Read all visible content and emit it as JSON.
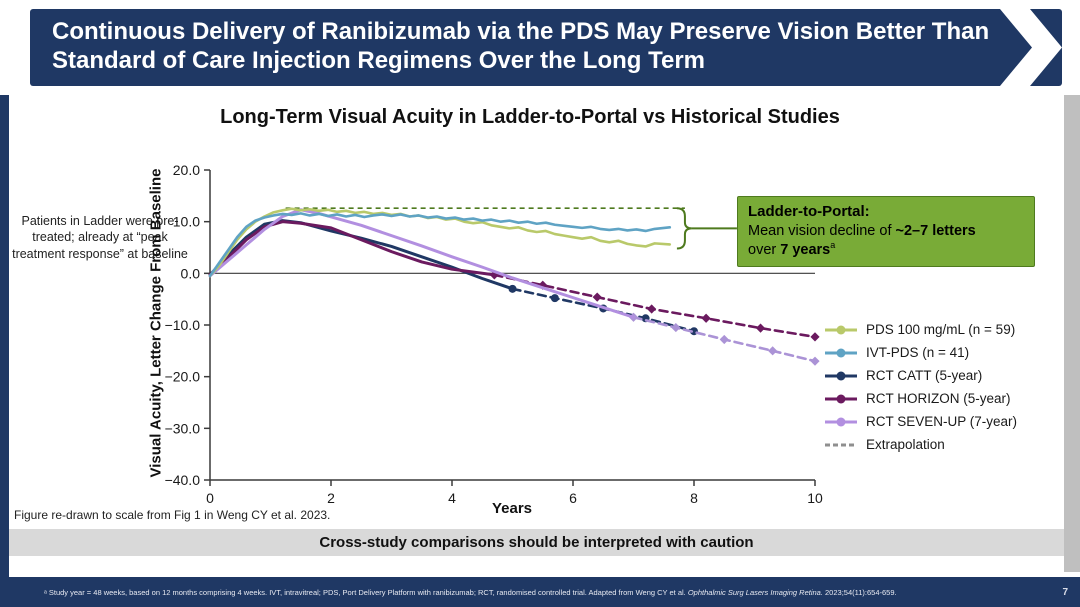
{
  "header": {
    "title": "Continuous Delivery of Ranibizumab via the PDS May Preserve Vision Better Than Standard of Care Injection Regimens Over the Long Term"
  },
  "slide": {
    "left_note": "Patients in Ladder were pre-treated; already at “peak treatment response” at baseline",
    "figure_note": "Figure re-drawn to scale from Fig 1 in Weng CY et al. 2023.",
    "caution_banner": "Cross-study comparisons should be interpreted with caution"
  },
  "callout": {
    "bg": "#79ab37",
    "border": "#4e7a1e",
    "title": "Ladder-to-Portal:",
    "line1_normal": "Mean vision decline of ",
    "line1_bold": "~2–7 letters",
    "line2_normal": "over ",
    "line2_bold": "7 years",
    "line2_sup": "a"
  },
  "footer": {
    "note_part1": "ᵃ Study year = 48 weeks, based on 12 months comprising 4 weeks. IVT, intravitreal; PDS, Port Delivery Platform with ranibizumab; RCT, randomised controlled trial. Adapted from Weng CY et al. ",
    "note_italic": "Ophthalmic Surg Lasers Imaging Retina.",
    "note_part2": " 2023;54(11):654-659.",
    "page_number": "7"
  },
  "colors": {
    "header_navy": "#1f3864",
    "left_strip": "#1f3864",
    "right_strip": "#bfbfbf",
    "banner_gray": "#d9d9d9",
    "callout_green": "#79ab37",
    "reference_green": "#4e7a1e"
  },
  "chart_data": {
    "type": "line",
    "title": "Long-Term Visual Acuity in Ladder-to-Portal vs Historical Studies",
    "xlabel": "Years",
    "ylabel": "Visual Acuity, Letter Change From Baseline",
    "xlim": [
      0,
      10
    ],
    "ylim": [
      -40,
      20
    ],
    "xtick_values": [
      0,
      2,
      4,
      6,
      8,
      10
    ],
    "xtick_labels": [
      "0",
      "2",
      "4",
      "6",
      "8",
      "10"
    ],
    "ytick_values": [
      20,
      10,
      0,
      -10,
      -20,
      -30,
      -40
    ],
    "ytick_labels": [
      "20.0",
      "10.0",
      "0.0",
      "−10.0",
      "−20.0",
      "−30.0",
      "−40.0"
    ],
    "grid": false,
    "legend_position": "right",
    "reference_line": {
      "y": 12.6,
      "x_start": 1.25,
      "x_end": 7.85,
      "color": "#4e7a1e",
      "dash": true
    },
    "bracket": {
      "x": 7.85,
      "y_top": 12.6,
      "y_bottom": 4.8,
      "color": "#4e7a1e"
    },
    "series": [
      {
        "name": "RCT CATT (5-year)",
        "color": "#203864",
        "width": 3,
        "dash": false,
        "marker": null,
        "points": [
          [
            0,
            -0.3
          ],
          [
            0.3,
            3.5
          ],
          [
            0.6,
            7
          ],
          [
            0.9,
            9.5
          ],
          [
            1.2,
            10.2
          ],
          [
            1.5,
            9.8
          ],
          [
            2,
            8.2
          ],
          [
            2.5,
            6.8
          ],
          [
            3,
            5.2
          ],
          [
            3.5,
            3.2
          ],
          [
            4,
            1.2
          ],
          [
            4.5,
            -1
          ],
          [
            5,
            -3
          ]
        ]
      },
      {
        "name": "RCT HORIZON (5-year)",
        "color": "#6b1a5f",
        "width": 3,
        "dash": false,
        "marker": null,
        "points": [
          [
            0,
            -0.3
          ],
          [
            0.3,
            3
          ],
          [
            0.6,
            6.5
          ],
          [
            0.9,
            9
          ],
          [
            1.2,
            10
          ],
          [
            1.5,
            9.7
          ],
          [
            2,
            8.8
          ],
          [
            2.5,
            6.5
          ],
          [
            3,
            4.2
          ],
          [
            3.5,
            2.2
          ],
          [
            4,
            0.8
          ],
          [
            4.7,
            -0.3
          ]
        ]
      },
      {
        "name": "RCT CATT (5-year) — extrapolation",
        "color": "#203864",
        "width": 2.6,
        "dash": true,
        "marker": "circle",
        "points": [
          [
            5,
            -3
          ],
          [
            5.7,
            -4.8
          ],
          [
            6.5,
            -6.8
          ],
          [
            7.2,
            -8.7
          ],
          [
            8,
            -11.2
          ]
        ]
      },
      {
        "name": "RCT HORIZON (5-year) — extrapolation",
        "color": "#6b1a5f",
        "width": 2.6,
        "dash": true,
        "marker": "diamond",
        "points": [
          [
            4.7,
            -0.3
          ],
          [
            5.5,
            -2.3
          ],
          [
            6.4,
            -4.6
          ],
          [
            7.3,
            -6.9
          ],
          [
            8.2,
            -8.7
          ],
          [
            9.1,
            -10.6
          ],
          [
            10,
            -12.3
          ]
        ]
      },
      {
        "name": "RCT SEVEN-UP (7-year) — extrapolation",
        "color": "#ab93d6",
        "width": 2.6,
        "dash": true,
        "marker": "diamond",
        "points": [
          [
            7,
            -8.5
          ],
          [
            7.7,
            -10.5
          ],
          [
            8.5,
            -12.8
          ],
          [
            9.3,
            -15
          ],
          [
            10,
            -17
          ]
        ]
      },
      {
        "name": "RCT SEVEN-UP (7-year)",
        "color": "#b28fe0",
        "width": 3,
        "dash": false,
        "marker": null,
        "points": [
          [
            0,
            -0.5
          ],
          [
            0.3,
            2.5
          ],
          [
            0.6,
            5.5
          ],
          [
            0.9,
            8.5
          ],
          [
            1.2,
            11
          ],
          [
            1.5,
            12.3
          ],
          [
            1.8,
            11.6
          ],
          [
            2.1,
            10.6
          ],
          [
            2.5,
            9.3
          ],
          [
            3,
            7.3
          ],
          [
            3.5,
            5.3
          ],
          [
            4,
            3.2
          ],
          [
            4.5,
            1.2
          ],
          [
            5,
            -0.9
          ],
          [
            5.5,
            -2.8
          ],
          [
            6,
            -4.7
          ],
          [
            6.5,
            -6.6
          ],
          [
            7,
            -8.5
          ]
        ]
      },
      {
        "name": "PDS 100 mg/mL (n = 59)",
        "color": "#b9c96a",
        "width": 2.6,
        "dash": false,
        "marker": null,
        "points": [
          [
            0,
            -0.5
          ],
          [
            0.15,
            1.5
          ],
          [
            0.3,
            4
          ],
          [
            0.45,
            6.5
          ],
          [
            0.6,
            8.5
          ],
          [
            0.75,
            10
          ],
          [
            0.9,
            11
          ],
          [
            1.05,
            11.8
          ],
          [
            1.2,
            12.2
          ],
          [
            1.35,
            12.5
          ],
          [
            1.5,
            12.2
          ],
          [
            1.65,
            12.4
          ],
          [
            1.8,
            12.1
          ],
          [
            1.95,
            12.3
          ],
          [
            2.1,
            11.9
          ],
          [
            2.25,
            12.1
          ],
          [
            2.4,
            11.7
          ],
          [
            2.55,
            11.9
          ],
          [
            2.7,
            11.5
          ],
          [
            2.85,
            11.7
          ],
          [
            3,
            11.3
          ],
          [
            3.15,
            11.5
          ],
          [
            3.3,
            11
          ],
          [
            3.45,
            11.2
          ],
          [
            3.6,
            10.7
          ],
          [
            3.75,
            10.9
          ],
          [
            3.9,
            10.4
          ],
          [
            4.05,
            10.6
          ],
          [
            4.2,
            10
          ],
          [
            4.35,
            9.7
          ],
          [
            4.5,
            9.9
          ],
          [
            4.65,
            9.3
          ],
          [
            4.8,
            9
          ],
          [
            4.95,
            8.7
          ],
          [
            5.1,
            8.9
          ],
          [
            5.25,
            8.3
          ],
          [
            5.4,
            8
          ],
          [
            5.55,
            8.2
          ],
          [
            5.7,
            7.6
          ],
          [
            5.85,
            7.3
          ],
          [
            6,
            7
          ],
          [
            6.15,
            6.7
          ],
          [
            6.3,
            7
          ],
          [
            6.45,
            6.3
          ],
          [
            6.6,
            6
          ],
          [
            6.75,
            6.3
          ],
          [
            6.9,
            5.7
          ],
          [
            7.05,
            5.4
          ],
          [
            7.2,
            5.2
          ],
          [
            7.35,
            5.8
          ],
          [
            7.6,
            5.6
          ]
        ]
      },
      {
        "name": "IVT-PDS (n = 41)",
        "color": "#5fa3c4",
        "width": 2.6,
        "dash": false,
        "marker": null,
        "points": [
          [
            0,
            -0.5
          ],
          [
            0.15,
            2
          ],
          [
            0.3,
            4.5
          ],
          [
            0.45,
            7
          ],
          [
            0.6,
            9
          ],
          [
            0.75,
            10.2
          ],
          [
            0.9,
            10.8
          ],
          [
            1.05,
            11.2
          ],
          [
            1.2,
            11.5
          ],
          [
            1.35,
            11.3
          ],
          [
            1.5,
            11.6
          ],
          [
            1.65,
            11.2
          ],
          [
            1.8,
            11.5
          ],
          [
            1.95,
            11.1
          ],
          [
            2.1,
            11.4
          ],
          [
            2.25,
            11
          ],
          [
            2.4,
            11.3
          ],
          [
            2.55,
            10.9
          ],
          [
            2.7,
            11.2
          ],
          [
            2.85,
            11.4
          ],
          [
            3,
            11.1
          ],
          [
            3.15,
            11.4
          ],
          [
            3.3,
            11
          ],
          [
            3.45,
            11.2
          ],
          [
            3.6,
            10.8
          ],
          [
            3.75,
            11
          ],
          [
            3.9,
            10.6
          ],
          [
            4.05,
            10.8
          ],
          [
            4.2,
            10.4
          ],
          [
            4.35,
            10.6
          ],
          [
            4.5,
            10.2
          ],
          [
            4.65,
            10.4
          ],
          [
            4.8,
            10
          ],
          [
            4.95,
            10.2
          ],
          [
            5.1,
            9.8
          ],
          [
            5.25,
            10
          ],
          [
            5.4,
            9.6
          ],
          [
            5.55,
            9.8
          ],
          [
            5.7,
            9.4
          ],
          [
            5.85,
            9.2
          ],
          [
            6,
            9
          ],
          [
            6.15,
            8.8
          ],
          [
            6.3,
            9
          ],
          [
            6.45,
            8.6
          ],
          [
            6.6,
            8.4
          ],
          [
            6.75,
            8.6
          ],
          [
            6.9,
            8.3
          ],
          [
            7.05,
            8.5
          ],
          [
            7.2,
            8.2
          ],
          [
            7.35,
            8.6
          ],
          [
            7.6,
            8.9
          ]
        ]
      }
    ],
    "legend": [
      {
        "label": "PDS 100 mg/mL (n = 59)",
        "color": "#b9c96a",
        "dash": false,
        "marker": "circle"
      },
      {
        "label": "IVT-PDS (n = 41)",
        "color": "#5fa3c4",
        "dash": false,
        "marker": "circle"
      },
      {
        "label": "RCT CATT (5-year)",
        "color": "#203864",
        "dash": false,
        "marker": "circle"
      },
      {
        "label": "RCT HORIZON (5-year)",
        "color": "#6b1a5f",
        "dash": false,
        "marker": "circle"
      },
      {
        "label": "RCT SEVEN-UP (7-year)",
        "color": "#b28fe0",
        "dash": false,
        "marker": "circle"
      },
      {
        "label": "Extrapolation",
        "color": "#8f8f8f",
        "dash": true,
        "marker": null
      }
    ]
  }
}
